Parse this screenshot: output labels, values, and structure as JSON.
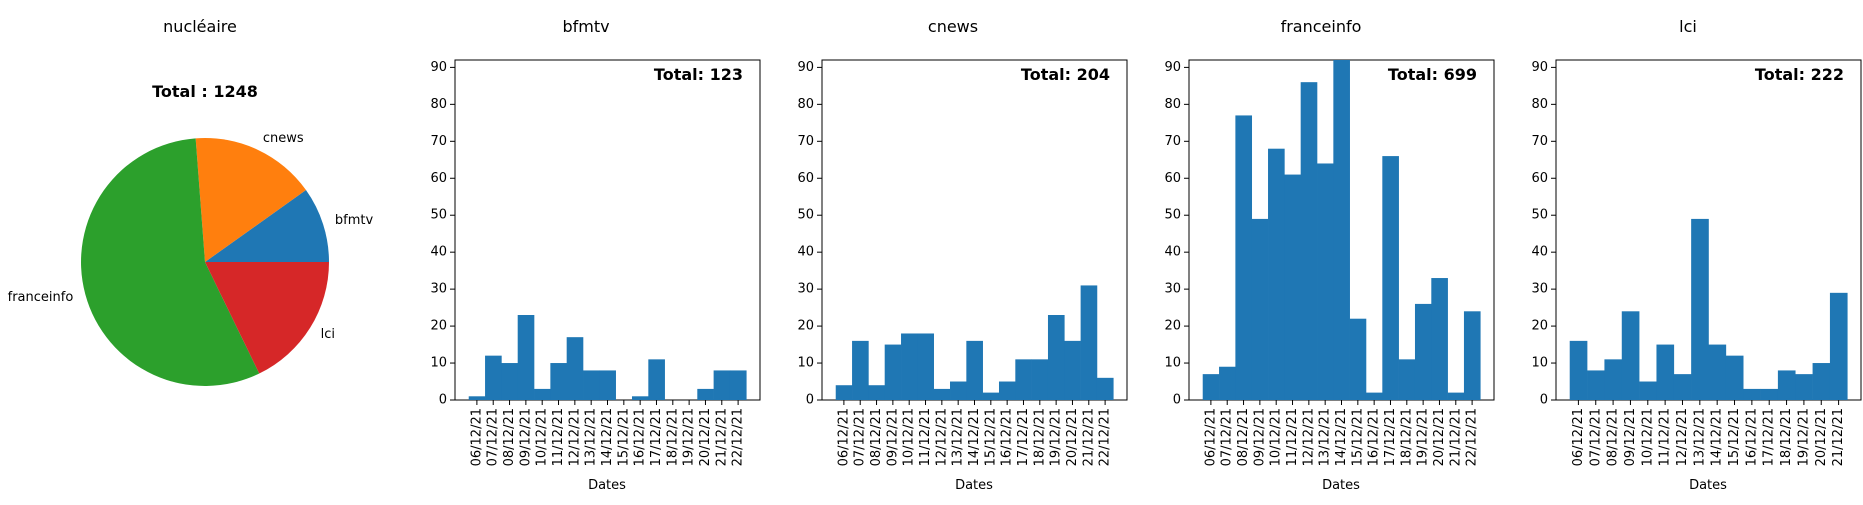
{
  "colors": {
    "bar": "#1f77b4",
    "pie": {
      "bfmtv": "#1f77b4",
      "cnews": "#ff7f0e",
      "franceinfo": "#2ca02c",
      "lci": "#d62728"
    }
  },
  "chart_data": [
    {
      "type": "pie",
      "title": "nucléaire",
      "total_label": "Total : 1248",
      "labels": [
        "bfmtv",
        "cnews",
        "franceinfo",
        "lci"
      ],
      "values": [
        123,
        204,
        699,
        222
      ],
      "start_angle_deg": 0,
      "direction": "counterclockwise"
    },
    {
      "type": "bar",
      "title": "bfmtv",
      "total_label": "Total: 123",
      "xlabel": "Dates",
      "ylim": [
        0,
        92
      ],
      "yticks": [
        0,
        10,
        20,
        30,
        40,
        50,
        60,
        70,
        80,
        90
      ],
      "categories": [
        "06/12/21",
        "07/12/21",
        "08/12/21",
        "09/12/21",
        "10/12/21",
        "11/12/21",
        "12/12/21",
        "13/12/21",
        "14/12/21",
        "15/12/21",
        "16/12/21",
        "17/12/21",
        "18/12/21",
        "19/12/21",
        "20/12/21",
        "21/12/21",
        "22/12/21"
      ],
      "values": [
        1,
        12,
        10,
        23,
        3,
        10,
        17,
        8,
        8,
        0,
        1,
        11,
        0,
        0,
        3,
        8,
        8
      ]
    },
    {
      "type": "bar",
      "title": "cnews",
      "total_label": "Total: 204",
      "xlabel": "Dates",
      "ylim": [
        0,
        92
      ],
      "yticks": [
        0,
        10,
        20,
        30,
        40,
        50,
        60,
        70,
        80,
        90
      ],
      "categories": [
        "06/12/21",
        "07/12/21",
        "08/12/21",
        "09/12/21",
        "10/12/21",
        "11/12/21",
        "12/12/21",
        "13/12/21",
        "14/12/21",
        "15/12/21",
        "16/12/21",
        "17/12/21",
        "18/12/21",
        "19/12/21",
        "20/12/21",
        "21/12/21",
        "22/12/21"
      ],
      "values": [
        4,
        16,
        4,
        15,
        18,
        18,
        3,
        5,
        16,
        2,
        5,
        11,
        11,
        23,
        16,
        31,
        6
      ]
    },
    {
      "type": "bar",
      "title": "franceinfo",
      "total_label": "Total: 699",
      "xlabel": "Dates",
      "ylim": [
        0,
        92
      ],
      "yticks": [
        0,
        10,
        20,
        30,
        40,
        50,
        60,
        70,
        80,
        90
      ],
      "categories": [
        "06/12/21",
        "07/12/21",
        "08/12/21",
        "09/12/21",
        "10/12/21",
        "11/12/21",
        "12/12/21",
        "13/12/21",
        "14/12/21",
        "15/12/21",
        "16/12/21",
        "17/12/21",
        "18/12/21",
        "19/12/21",
        "20/12/21",
        "21/12/21",
        "22/12/21"
      ],
      "values": [
        7,
        9,
        77,
        49,
        68,
        61,
        86,
        64,
        92,
        22,
        2,
        66,
        11,
        26,
        33,
        2,
        24
      ]
    },
    {
      "type": "bar",
      "title": "lci",
      "total_label": "Total: 222",
      "xlabel": "Dates",
      "ylim": [
        0,
        92
      ],
      "yticks": [
        0,
        10,
        20,
        30,
        40,
        50,
        60,
        70,
        80,
        90
      ],
      "categories": [
        "06/12/21",
        "07/12/21",
        "08/12/21",
        "09/12/21",
        "10/12/21",
        "11/12/21",
        "12/12/21",
        "13/12/21",
        "14/12/21",
        "15/12/21",
        "16/12/21",
        "17/12/21",
        "18/12/21",
        "19/12/21",
        "20/12/21",
        "21/12/21"
      ],
      "values": [
        16,
        8,
        11,
        24,
        5,
        15,
        7,
        49,
        15,
        12,
        3,
        3,
        8,
        7,
        10,
        29
      ]
    }
  ]
}
